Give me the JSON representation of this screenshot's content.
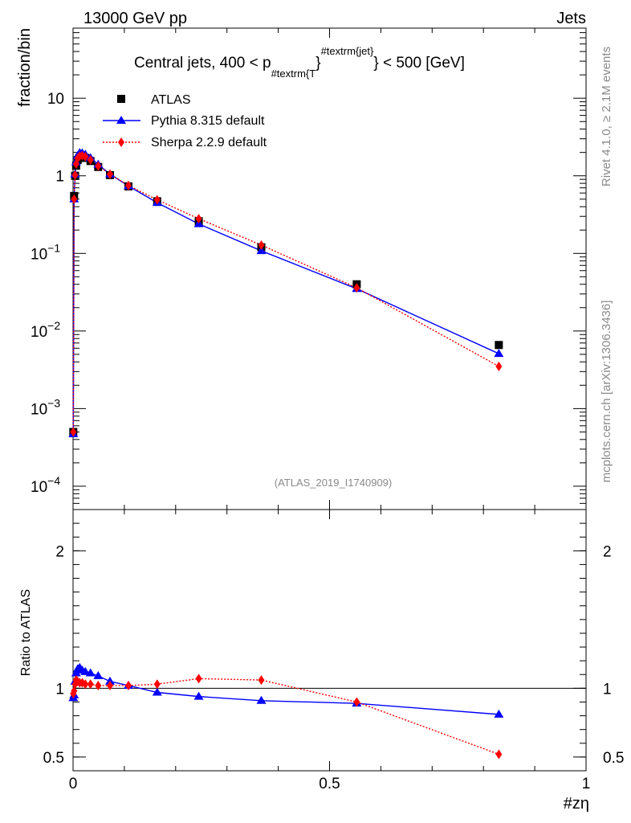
{
  "header": {
    "left": "13000 GeV pp",
    "right": "Jets"
  },
  "side_labels": {
    "upper": "Rivet 4.1.0, ≥ 2.1M events",
    "lower": "mcplots.cern.ch [arXiv:1306.3436]"
  },
  "watermark": "(ATLAS_2019_I1740909)",
  "colors": {
    "atlas": "#000000",
    "pythia": "#0000ff",
    "sherpa": "#ff0000"
  },
  "chart_data": {
    "type": "line",
    "title": {
      "prefix": "Central jets, 400 < p",
      "subscript": "#textrm{T",
      "brace": "}",
      "superscript": "#textrm{jet}",
      "suffix": "} < 500 [GeV]"
    },
    "xlabel": "#zη",
    "ylabel": "fraction/bin",
    "ratio_ylabel": "Ratio to ATLAS",
    "xlim": [
      0,
      1
    ],
    "ylim": [
      5e-05,
      80
    ],
    "yscale": "log",
    "ratio_ylim": [
      0.4,
      2.3
    ],
    "x_ticks": [
      {
        "v": 0,
        "label": "0"
      },
      {
        "v": 0.5,
        "label": "0.5"
      },
      {
        "v": 1,
        "label": "1"
      }
    ],
    "y_ticks": [
      {
        "v": 0.0001,
        "base": "10",
        "exp": "−4"
      },
      {
        "v": 0.001,
        "base": "10",
        "exp": "−3"
      },
      {
        "v": 0.01,
        "base": "10",
        "exp": "−2"
      },
      {
        "v": 0.1,
        "base": "10",
        "exp": "−1"
      },
      {
        "v": 1,
        "base": "1",
        "exp": ""
      },
      {
        "v": 10,
        "base": "10",
        "exp": ""
      }
    ],
    "ratio_y_ticks": [
      {
        "v": 0.5,
        "label": "0.5"
      },
      {
        "v": 1,
        "label": "1"
      },
      {
        "v": 2,
        "label": "2"
      }
    ],
    "legend": {
      "position": "top-left"
    },
    "series": [
      {
        "name": "ATLAS",
        "marker": "square",
        "x": [
          0.0005,
          0.002,
          0.004,
          0.006,
          0.009,
          0.013,
          0.018,
          0.024,
          0.034,
          0.049,
          0.072,
          0.108,
          0.164,
          0.245,
          0.367,
          0.553,
          0.83
        ],
        "y": [
          0.0005,
          0.55,
          1.0,
          1.35,
          1.6,
          1.72,
          1.75,
          1.7,
          1.55,
          1.3,
          1.02,
          0.73,
          0.47,
          0.26,
          0.12,
          0.04,
          0.0066
        ]
      },
      {
        "name": "Pythia 8.315 default",
        "marker": "triangle",
        "x": [
          0.0005,
          0.002,
          0.004,
          0.006,
          0.009,
          0.013,
          0.018,
          0.024,
          0.034,
          0.049,
          0.072,
          0.108,
          0.164,
          0.245,
          0.367,
          0.553,
          0.83
        ],
        "y": [
          0.00047,
          0.5,
          1.05,
          1.5,
          1.82,
          1.98,
          1.96,
          1.88,
          1.7,
          1.4,
          1.05,
          0.74,
          0.45,
          0.24,
          0.108,
          0.035,
          0.0051
        ]
      },
      {
        "name": "Sherpa 2.2.9 default",
        "marker": "diamond",
        "x": [
          0.0005,
          0.002,
          0.004,
          0.006,
          0.009,
          0.013,
          0.018,
          0.024,
          0.034,
          0.049,
          0.072,
          0.108,
          0.164,
          0.245,
          0.367,
          0.553,
          0.83
        ],
        "y": [
          0.0005,
          0.5,
          1.02,
          1.42,
          1.68,
          1.8,
          1.82,
          1.76,
          1.6,
          1.34,
          1.05,
          0.75,
          0.49,
          0.28,
          0.128,
          0.036,
          0.0035
        ]
      }
    ],
    "ratio_series": [
      {
        "name": "Pythia 8.315 default",
        "x": [
          0.0005,
          0.002,
          0.004,
          0.006,
          0.009,
          0.013,
          0.018,
          0.024,
          0.034,
          0.049,
          0.072,
          0.108,
          0.164,
          0.245,
          0.367,
          0.553,
          0.83
        ],
        "y": [
          0.93,
          0.95,
          1.05,
          1.11,
          1.14,
          1.15,
          1.13,
          1.12,
          1.11,
          1.09,
          1.05,
          1.02,
          0.97,
          0.94,
          0.91,
          0.89,
          0.81
        ]
      },
      {
        "name": "Sherpa 2.2.9 default",
        "x": [
          0.0005,
          0.002,
          0.004,
          0.006,
          0.009,
          0.013,
          0.018,
          0.024,
          0.034,
          0.049,
          0.072,
          0.108,
          0.164,
          0.245,
          0.367,
          0.553,
          0.83
        ],
        "y": [
          0.96,
          0.98,
          1.03,
          1.06,
          1.05,
          1.04,
          1.04,
          1.03,
          1.03,
          1.02,
          1.02,
          1.02,
          1.03,
          1.07,
          1.06,
          0.9,
          0.52
        ]
      }
    ]
  }
}
